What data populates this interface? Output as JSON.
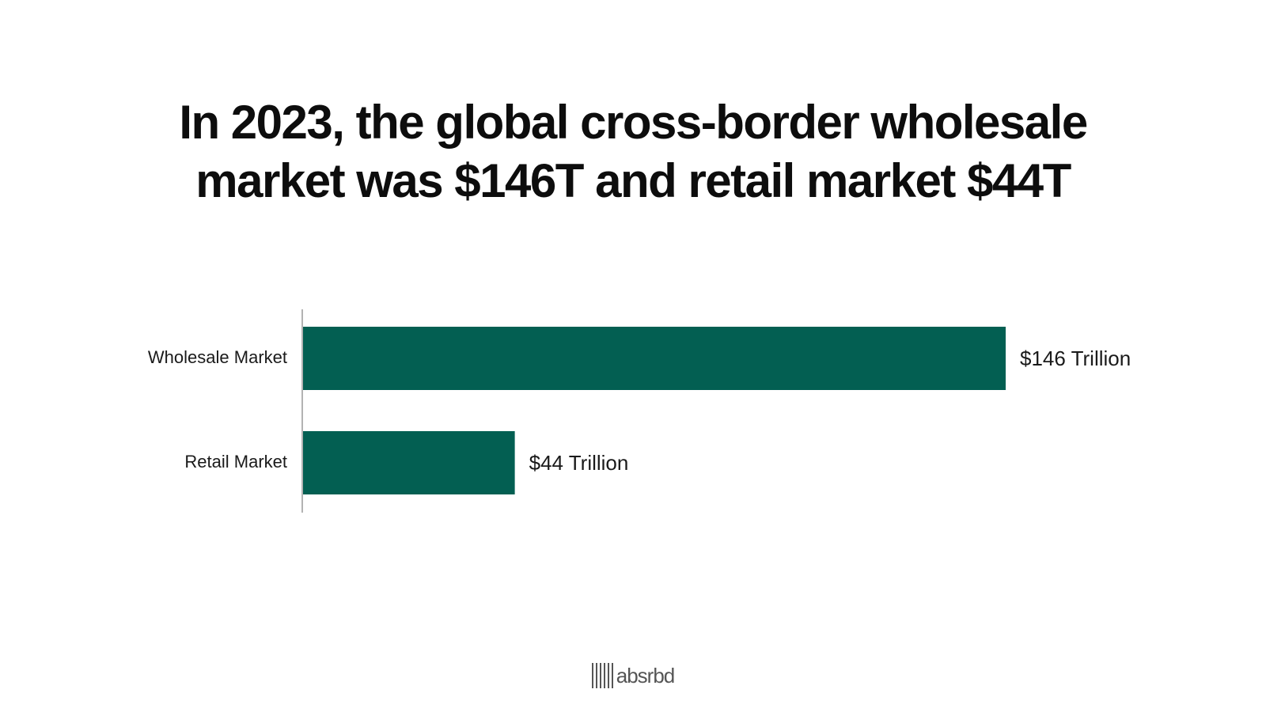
{
  "chart_data": {
    "type": "bar",
    "orientation": "horizontal",
    "title": "In 2023, the global cross-border wholesale market was $146T and retail market $44T",
    "title_lines": [
      "In 2023, the global cross-border wholesale",
      "market was $146T and retail market $44T"
    ],
    "categories": [
      "Wholesale Market",
      "Retail Market"
    ],
    "values": [
      146,
      44
    ],
    "value_labels": [
      "$146 Trillion",
      "$44 Trillion"
    ],
    "unit": "Trillion USD",
    "xlim": [
      0,
      146
    ],
    "xlabel": "",
    "ylabel": "",
    "grid": false,
    "legend": "none",
    "bar_color": "#035f52",
    "axis_color": "#9a9a9a"
  },
  "branding": {
    "logo_text": "absrbd",
    "logo_color": "#555555"
  }
}
